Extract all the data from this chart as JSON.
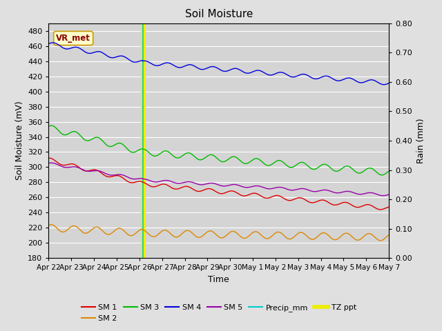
{
  "title": "Soil Moisture",
  "ylabel_left": "Soil Moisture (mV)",
  "ylabel_right": "Rain (mm)",
  "xlabel": "Time",
  "annotation": "VR_met",
  "ylim_left": [
    180,
    490
  ],
  "ylim_right": [
    0.0,
    0.8
  ],
  "yticks_left": [
    180,
    200,
    220,
    240,
    260,
    280,
    300,
    320,
    340,
    360,
    380,
    400,
    420,
    440,
    460,
    480
  ],
  "yticks_right": [
    0.0,
    0.1,
    0.2,
    0.3,
    0.4,
    0.5,
    0.6,
    0.7,
    0.8
  ],
  "x_labels": [
    "Apr 22",
    "Apr 23",
    "Apr 24",
    "Apr 25",
    "Apr 26",
    "Apr 27",
    "Apr 28",
    "Apr 29",
    "Apr 30",
    "May 1",
    "May 2",
    "May 3",
    "May 4",
    "May 5",
    "May 6",
    "May 7"
  ],
  "n_days": 15,
  "vline_x": 4.15,
  "background_color": "#e0e0e0",
  "plot_bg_color": "#d4d4d4",
  "sm1_color": "#dd0000",
  "sm2_color": "#dd8800",
  "sm3_color": "#00bb00",
  "sm4_color": "#0000dd",
  "sm5_color": "#9900aa",
  "precip_color": "#00cccc",
  "tzppt_color": "#eeee00",
  "grid_color": "#ffffff"
}
